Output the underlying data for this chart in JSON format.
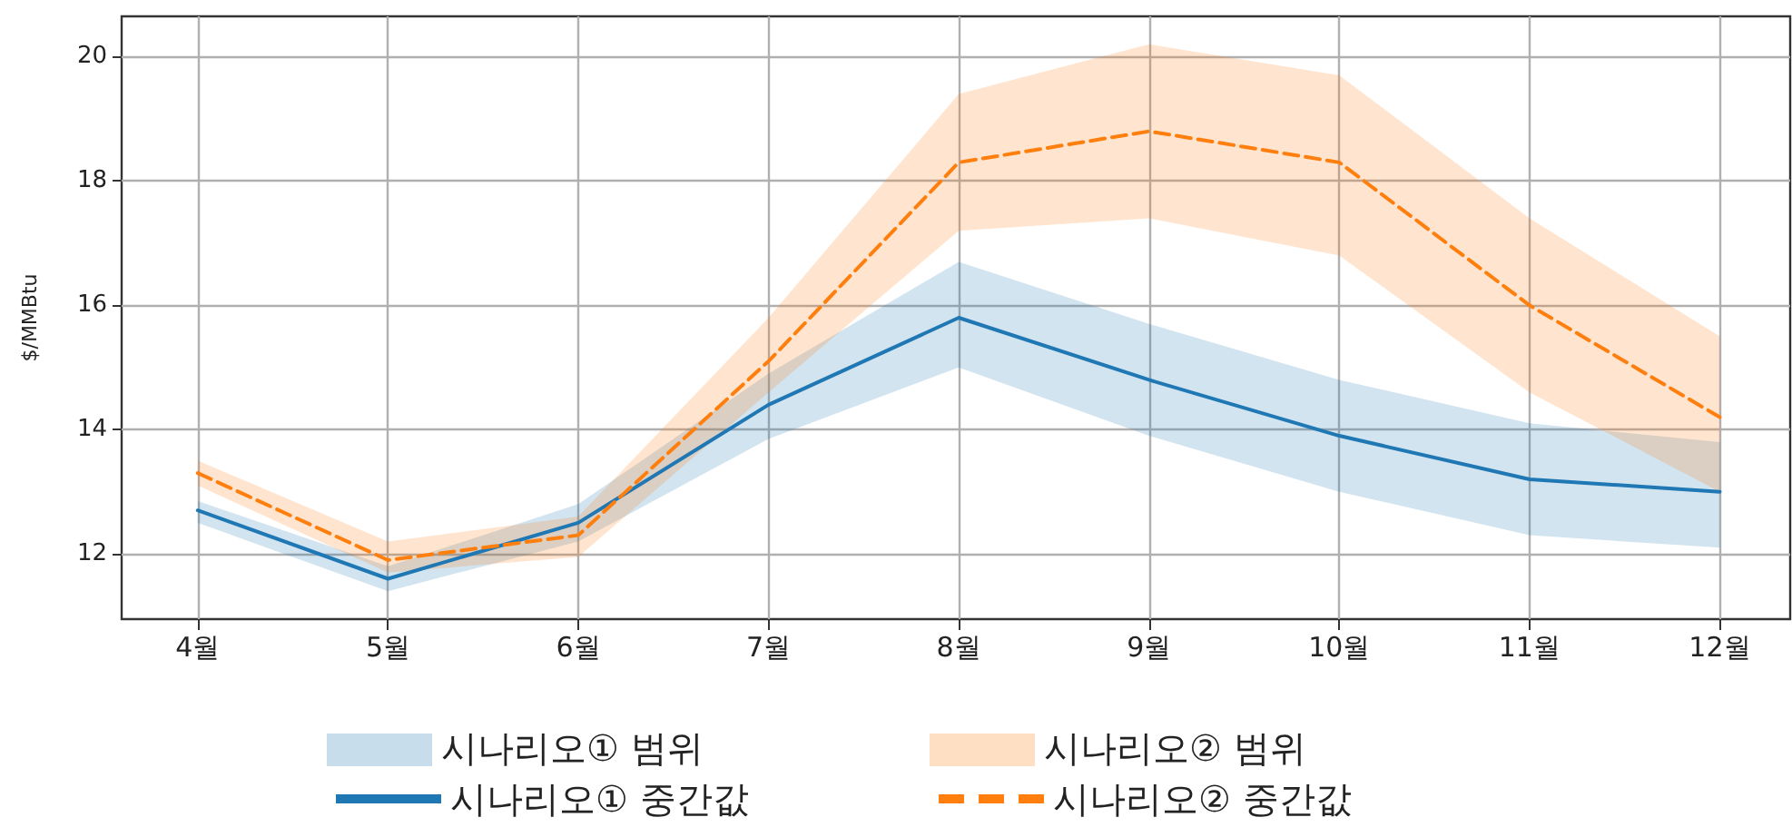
{
  "chart_data": {
    "type": "line",
    "ylabel": "$/MMBtu",
    "categories": [
      "4월",
      "5월",
      "6월",
      "7월",
      "8월",
      "9월",
      "10월",
      "11월",
      "12월"
    ],
    "ylim": [
      10.95,
      20.65
    ],
    "yticks": [
      12,
      14,
      16,
      18,
      20
    ],
    "grid": true,
    "legend": "bottom",
    "annotations": [
      "시나리오① 범위",
      "시나리오② 범위"
    ],
    "series": [
      {
        "name": "시나리오① 중간값",
        "color": "#1f77b4",
        "line_style": "solid",
        "values": [
          12.7,
          11.6,
          12.5,
          14.4,
          15.8,
          14.8,
          13.9,
          13.2,
          13.0
        ],
        "lower": [
          12.5,
          11.4,
          12.2,
          13.85,
          15.0,
          13.9,
          13.0,
          12.3,
          12.1
        ],
        "upper": [
          12.85,
          11.8,
          12.8,
          14.9,
          16.7,
          15.7,
          14.8,
          14.1,
          13.8
        ]
      },
      {
        "name": "시나리오② 중간값",
        "color": "#ff7f0e",
        "line_style": "dashed",
        "values": [
          13.3,
          11.9,
          12.3,
          15.1,
          18.3,
          18.8,
          18.3,
          16.0,
          14.2
        ],
        "lower": [
          13.1,
          11.7,
          11.95,
          14.6,
          17.2,
          17.4,
          16.8,
          14.6,
          13.0
        ],
        "upper": [
          13.5,
          12.2,
          12.6,
          15.8,
          19.4,
          20.2,
          19.7,
          17.4,
          15.5
        ]
      }
    ]
  }
}
